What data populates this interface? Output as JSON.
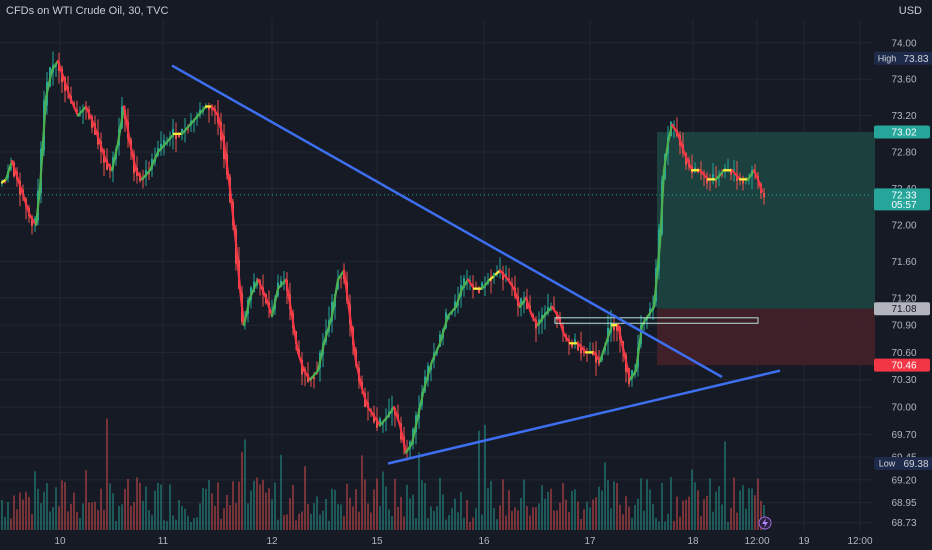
{
  "header": {
    "title": "CFDs on WTI Crude Oil, 30, TVC",
    "currency": "USD"
  },
  "colors": {
    "background": "#161a25",
    "grid": "#232733",
    "up": "#26a69a",
    "down": "#ef5350",
    "trendline": "#3d6ff0",
    "target_zone": "#1d4d45",
    "stop_zone": "#4a2129"
  },
  "chart_data": {
    "type": "candlestick",
    "ylim": [
      68.65,
      74.25
    ],
    "y_ticks": [
      74.0,
      73.6,
      73.2,
      72.8,
      72.4,
      72.0,
      71.6,
      71.2,
      70.9,
      70.6,
      70.3,
      70.0,
      69.7,
      69.45,
      69.2,
      68.95,
      68.73
    ],
    "x_ticks": [
      "10",
      "11",
      "12",
      "15",
      "16",
      "17",
      "18",
      "12:00",
      "19",
      "12:00"
    ],
    "high": {
      "label": "High",
      "value": "73.83"
    },
    "low": {
      "label": "Low",
      "value": "69.38"
    },
    "last_price": {
      "value": "72.33",
      "countdown": "05:57"
    },
    "position": {
      "target": "73.02",
      "entry": "71.08",
      "stop": "70.46"
    },
    "path_points": [
      [
        0,
        72.45
      ],
      [
        6,
        72.5
      ],
      [
        12,
        72.7
      ],
      [
        18,
        72.5
      ],
      [
        24,
        72.3
      ],
      [
        30,
        72.1
      ],
      [
        36,
        72.0
      ],
      [
        40,
        72.4
      ],
      [
        46,
        73.4
      ],
      [
        52,
        73.7
      ],
      [
        58,
        73.8
      ],
      [
        64,
        73.6
      ],
      [
        70,
        73.4
      ],
      [
        78,
        73.2
      ],
      [
        86,
        73.3
      ],
      [
        94,
        73.1
      ],
      [
        100,
        72.9
      ],
      [
        106,
        72.7
      ],
      [
        112,
        72.6
      ],
      [
        118,
        72.9
      ],
      [
        124,
        73.3
      ],
      [
        130,
        72.9
      ],
      [
        136,
        72.6
      ],
      [
        142,
        72.5
      ],
      [
        150,
        72.6
      ],
      [
        158,
        72.8
      ],
      [
        166,
        72.9
      ],
      [
        174,
        73.0
      ],
      [
        182,
        73.0
      ],
      [
        190,
        73.1
      ],
      [
        198,
        73.2
      ],
      [
        206,
        73.3
      ],
      [
        212,
        73.3
      ],
      [
        218,
        73.2
      ],
      [
        224,
        72.9
      ],
      [
        230,
        72.4
      ],
      [
        236,
        71.8
      ],
      [
        240,
        71.3
      ],
      [
        244,
        70.9
      ],
      [
        250,
        71.2
      ],
      [
        258,
        71.4
      ],
      [
        266,
        71.2
      ],
      [
        272,
        71.0
      ],
      [
        278,
        71.3
      ],
      [
        286,
        71.4
      ],
      [
        292,
        71.0
      ],
      [
        298,
        70.6
      ],
      [
        304,
        70.4
      ],
      [
        310,
        70.3
      ],
      [
        318,
        70.4
      ],
      [
        324,
        70.7
      ],
      [
        332,
        71.0
      ],
      [
        338,
        71.4
      ],
      [
        344,
        71.5
      ],
      [
        350,
        71.0
      ],
      [
        356,
        70.5
      ],
      [
        362,
        70.2
      ],
      [
        368,
        70.0
      ],
      [
        374,
        69.9
      ],
      [
        380,
        69.8
      ],
      [
        388,
        69.9
      ],
      [
        394,
        70.0
      ],
      [
        400,
        69.8
      ],
      [
        406,
        69.5
      ],
      [
        412,
        69.6
      ],
      [
        418,
        69.9
      ],
      [
        424,
        70.2
      ],
      [
        432,
        70.5
      ],
      [
        440,
        70.7
      ],
      [
        448,
        71.0
      ],
      [
        456,
        71.1
      ],
      [
        462,
        71.3
      ],
      [
        468,
        71.4
      ],
      [
        474,
        71.3
      ],
      [
        482,
        71.3
      ],
      [
        490,
        71.4
      ],
      [
        500,
        71.5
      ],
      [
        508,
        71.4
      ],
      [
        514,
        71.3
      ],
      [
        520,
        71.1
      ],
      [
        526,
        71.2
      ],
      [
        532,
        71.0
      ],
      [
        538,
        70.9
      ],
      [
        544,
        71.0
      ],
      [
        552,
        71.1
      ],
      [
        558,
        71.0
      ],
      [
        564,
        70.8
      ],
      [
        570,
        70.7
      ],
      [
        578,
        70.7
      ],
      [
        586,
        70.6
      ],
      [
        594,
        70.6
      ],
      [
        600,
        70.5
      ],
      [
        606,
        70.7
      ],
      [
        612,
        70.9
      ],
      [
        618,
        70.9
      ],
      [
        624,
        70.6
      ],
      [
        630,
        70.3
      ],
      [
        636,
        70.4
      ],
      [
        642,
        70.9
      ],
      [
        648,
        71.0
      ],
      [
        654,
        71.1
      ],
      [
        660,
        71.8
      ],
      [
        664,
        72.6
      ],
      [
        668,
        72.9
      ],
      [
        672,
        73.1
      ],
      [
        678,
        73.0
      ],
      [
        684,
        72.8
      ],
      [
        692,
        72.6
      ],
      [
        700,
        72.6
      ],
      [
        708,
        72.5
      ],
      [
        716,
        72.5
      ],
      [
        724,
        72.6
      ],
      [
        732,
        72.6
      ],
      [
        740,
        72.5
      ],
      [
        748,
        72.5
      ],
      [
        754,
        72.6
      ],
      [
        758,
        72.5
      ],
      [
        764,
        72.3
      ]
    ],
    "annotations": {
      "trendlines": [
        {
          "from": [
            172,
            73.75
          ],
          "to": [
            722,
            70.33
          ]
        },
        {
          "from": [
            388,
            69.38
          ],
          "to": [
            780,
            70.4
          ]
        }
      ],
      "position_x": [
        657,
        875
      ],
      "signal_box": {
        "x": [
          555,
          758
        ],
        "top": 70.98,
        "bottom": 70.92
      }
    }
  }
}
